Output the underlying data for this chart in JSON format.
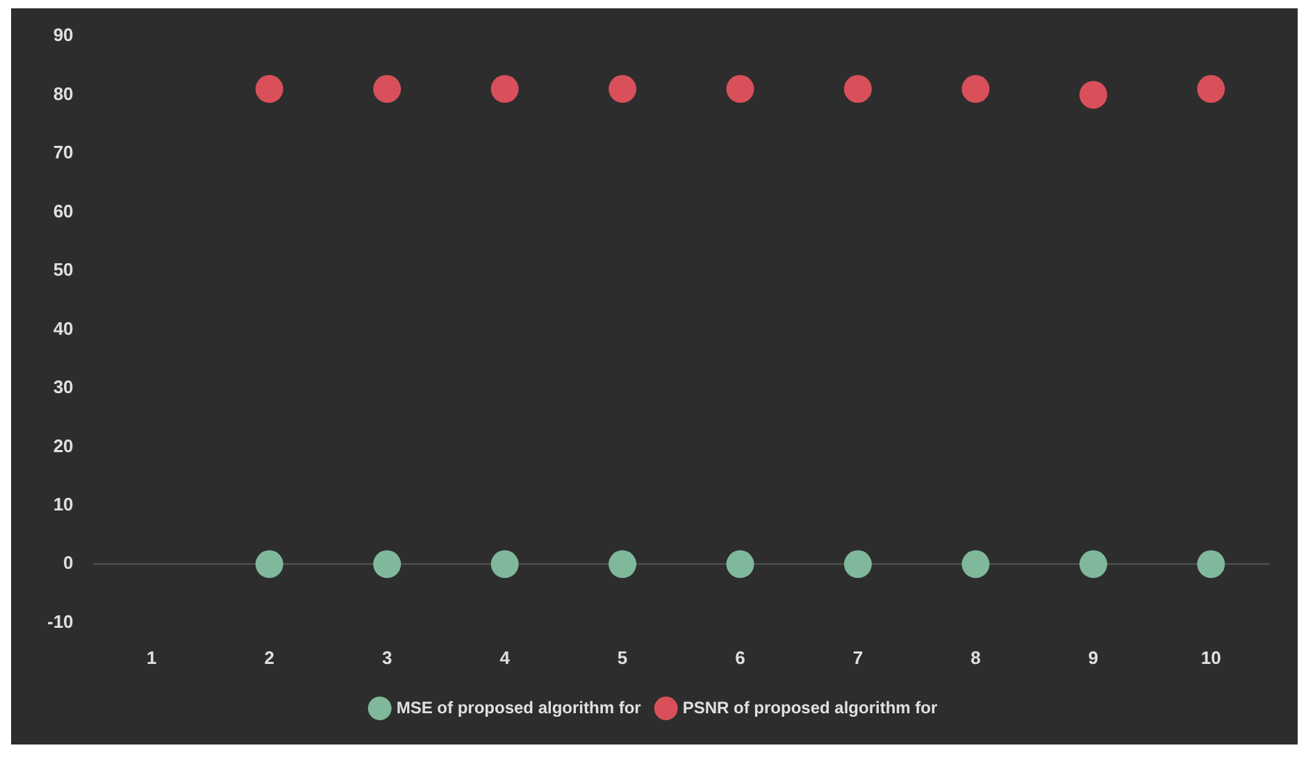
{
  "chart_data": {
    "type": "scatter",
    "categories": [
      "1",
      "2",
      "3",
      "4",
      "5",
      "6",
      "7",
      "8",
      "9",
      "10"
    ],
    "series": [
      {
        "name": "MSE of proposed algorithm for",
        "color": "#7fb89a",
        "values": [
          null,
          0,
          0,
          0,
          0,
          0,
          0,
          0,
          0,
          0
        ]
      },
      {
        "name": "PSNR of proposed algorithm for",
        "color": "#d9505a",
        "values": [
          null,
          81,
          81,
          81,
          81,
          81,
          81,
          81,
          80,
          81
        ]
      }
    ],
    "ylim": [
      -10,
      90
    ],
    "yticks": [
      -10,
      0,
      10,
      20,
      30,
      40,
      50,
      60,
      70,
      80,
      90
    ],
    "grid": false,
    "legend": "bottom",
    "marker": "circle",
    "ref_lines": [
      {
        "axis": "y",
        "value": 0,
        "color": "#555555"
      }
    ]
  }
}
